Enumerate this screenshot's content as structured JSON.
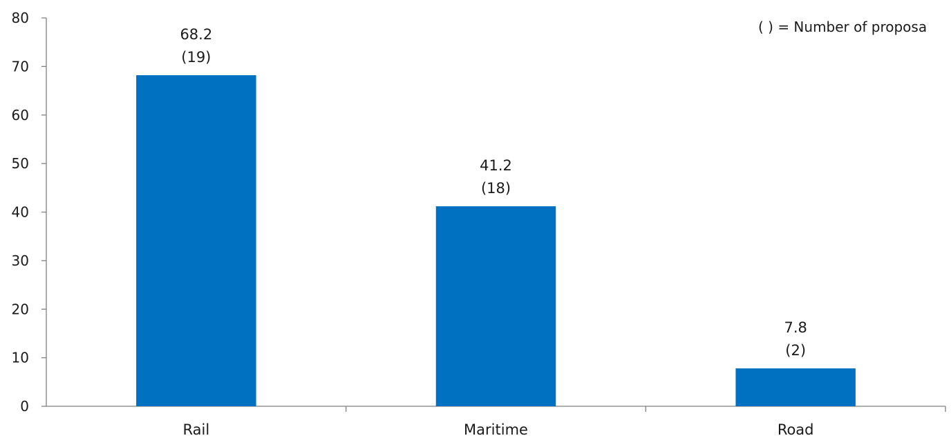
{
  "chart_data": {
    "type": "bar",
    "title": "",
    "xlabel": "",
    "ylabel": "",
    "categories": [
      "Rail",
      "Maritime",
      "Road"
    ],
    "values": [
      68.2,
      41.2,
      7.8
    ],
    "value_labels": [
      "68.2",
      "41.2",
      "7.8"
    ],
    "proposal_counts": [
      19,
      18,
      2
    ],
    "count_labels": [
      "(19)",
      "(18)",
      "(2)"
    ],
    "ylim": [
      0,
      80
    ],
    "yticks": [
      0,
      10,
      20,
      30,
      40,
      50,
      60,
      70,
      80
    ],
    "grid": false,
    "bar_color": "#0070C0",
    "annotation": "( ) = Number of proposa"
  }
}
